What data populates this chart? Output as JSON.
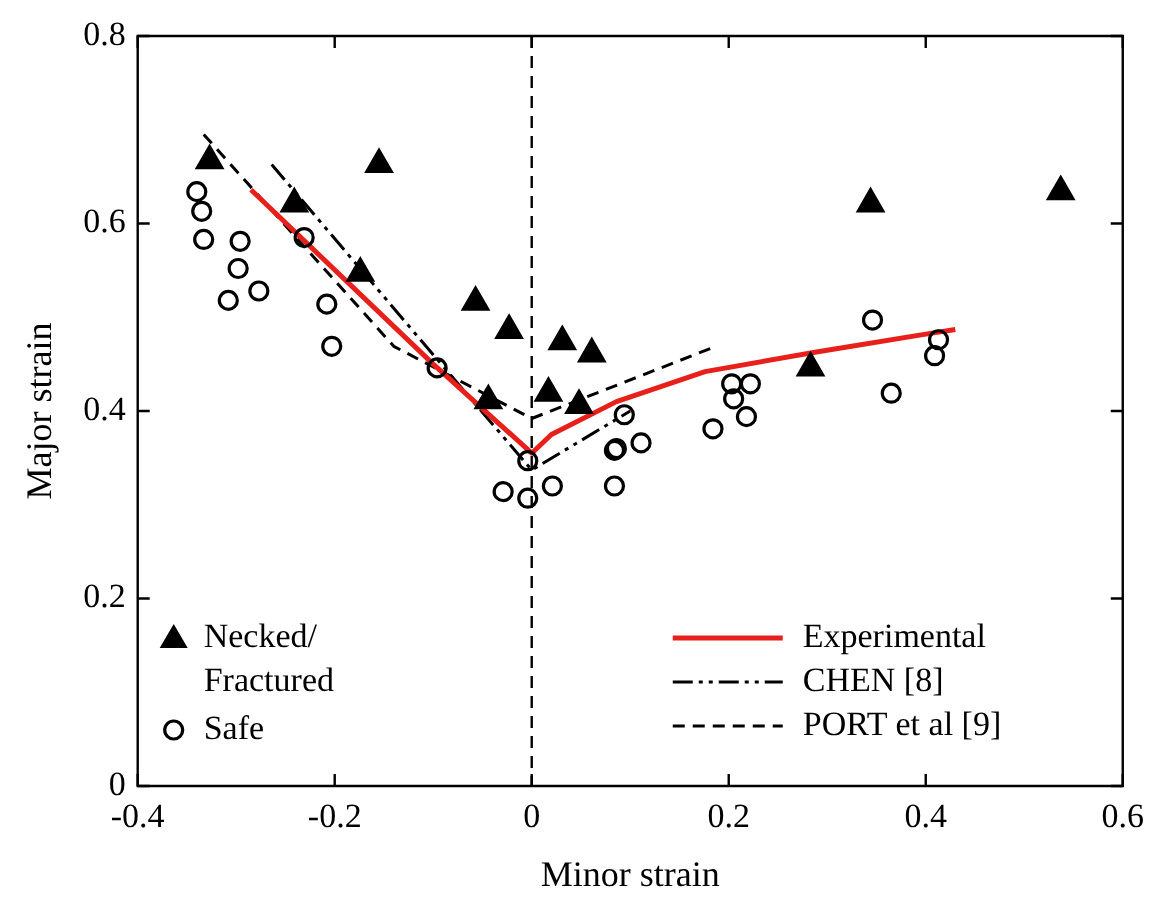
{
  "chart_data": {
    "type": "scatter",
    "xlabel": "Minor strain",
    "ylabel": "Major strain",
    "xlim": [
      -0.4,
      0.6
    ],
    "xticks": [
      -0.4,
      -0.2,
      0,
      0.2,
      0.4,
      0.6
    ],
    "ylim": [
      0,
      0.8
    ],
    "yticks": [
      0,
      0.2,
      0.4,
      0.6,
      0.8
    ],
    "grid": false,
    "legend": "bottom",
    "ref_lines": [
      {
        "axis": "x",
        "value": 0,
        "color": "#000000",
        "line_style": "dashed"
      }
    ],
    "series": [
      {
        "name": "Necked/ Fractured",
        "marker": "triangle",
        "color": "#000000",
        "x": [
          -0.327,
          -0.241,
          -0.174,
          -0.155,
          -0.057,
          -0.023,
          -0.044,
          0.017,
          0.031,
          0.061,
          0.048,
          0.283,
          0.344,
          0.537
        ],
        "values": [
          0.667,
          0.621,
          0.547,
          0.663,
          0.516,
          0.486,
          0.411,
          0.419,
          0.474,
          0.461,
          0.406,
          0.446,
          0.621,
          0.634
        ]
      },
      {
        "name": "Safe",
        "marker": "circle",
        "color": "#000000",
        "x": [
          -0.34,
          -0.335,
          -0.333,
          -0.296,
          -0.298,
          -0.277,
          -0.308,
          -0.231,
          -0.208,
          -0.203,
          -0.096,
          -0.004,
          -0.029,
          -0.004,
          0.021,
          0.084,
          0.084,
          0.094,
          0.086,
          0.111,
          0.184,
          0.203,
          0.222,
          0.205,
          0.218,
          0.346,
          0.365,
          0.413,
          0.409
        ],
        "values": [
          0.634,
          0.613,
          0.583,
          0.581,
          0.552,
          0.528,
          0.518,
          0.585,
          0.514,
          0.469,
          0.446,
          0.347,
          0.314,
          0.307,
          0.32,
          0.358,
          0.32,
          0.396,
          0.36,
          0.366,
          0.381,
          0.429,
          0.429,
          0.413,
          0.394,
          0.497,
          0.419,
          0.476,
          0.459
        ]
      },
      {
        "name": "Experimental",
        "type": "line",
        "line_style": "solid",
        "marker": "none",
        "color": "#e8201c",
        "x": [
          -0.285,
          -0.1,
          0,
          0.02,
          0.086,
          0.176,
          0.289,
          0.4,
          0.43
        ],
        "values": [
          0.636,
          0.45,
          0.355,
          0.375,
          0.41,
          0.442,
          0.463,
          0.482,
          0.487
        ]
      },
      {
        "name": "CHEN [8]",
        "type": "line",
        "line_style": "dashdot",
        "marker": "none",
        "color": "#000000",
        "x": [
          -0.264,
          -0.1,
          0,
          0.1
        ],
        "values": [
          0.663,
          0.46,
          0.337,
          0.4
        ]
      },
      {
        "name": "PORT et al [9]",
        "type": "line",
        "line_style": "dashed",
        "marker": "none",
        "color": "#000000",
        "x": [
          -0.333,
          -0.14,
          0,
          0.187
        ],
        "values": [
          0.695,
          0.469,
          0.392,
          0.469
        ]
      }
    ]
  }
}
